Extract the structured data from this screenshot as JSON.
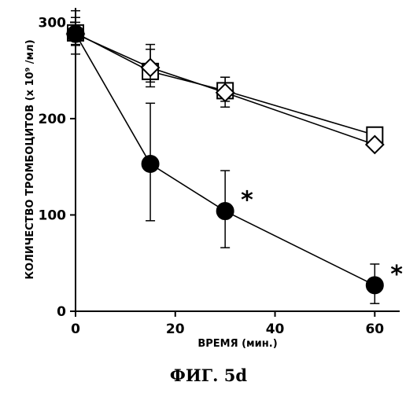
{
  "chart_data": {
    "type": "line",
    "figure_label": "ФИГ. 5d",
    "xlabel": "ВРЕМЯ (мин.)",
    "ylabel": "КОЛИЧЕСТВО ТРОМБОЦИТОВ (x 10⁹ /мл)",
    "xlim": [
      0,
      65
    ],
    "ylim": [
      0,
      315
    ],
    "x_ticks": [
      0,
      20,
      40,
      60
    ],
    "y_ticks": [
      0,
      100,
      200,
      300
    ],
    "grid": false,
    "legend": "none",
    "series": [
      {
        "marker": "filled-circle",
        "x": [
          0,
          15,
          30,
          60
        ],
        "y": [
          288,
          153,
          104,
          27
        ],
        "err_upper": [
          312,
          216,
          146,
          49
        ],
        "err_lower": [
          267,
          94,
          66,
          8
        ],
        "annotations": [
          "",
          "",
          "*",
          "*"
        ]
      },
      {
        "marker": "open-square",
        "x": [
          0,
          15,
          30,
          60
        ],
        "y": [
          289,
          249,
          229,
          183
        ],
        "err_upper": [
          305,
          277,
          243,
          183
        ],
        "err_lower": [
          277,
          233,
          218,
          183
        ],
        "annotations": [
          "",
          "",
          "",
          ""
        ]
      },
      {
        "marker": "open-diamond",
        "x": [
          0,
          15,
          30,
          60
        ],
        "y": [
          288,
          253,
          227,
          173
        ],
        "err_upper": [
          300,
          272,
          243,
          173
        ],
        "err_lower": [
          276,
          238,
          212,
          173
        ],
        "annotations": [
          "",
          "",
          "",
          ""
        ]
      }
    ]
  }
}
